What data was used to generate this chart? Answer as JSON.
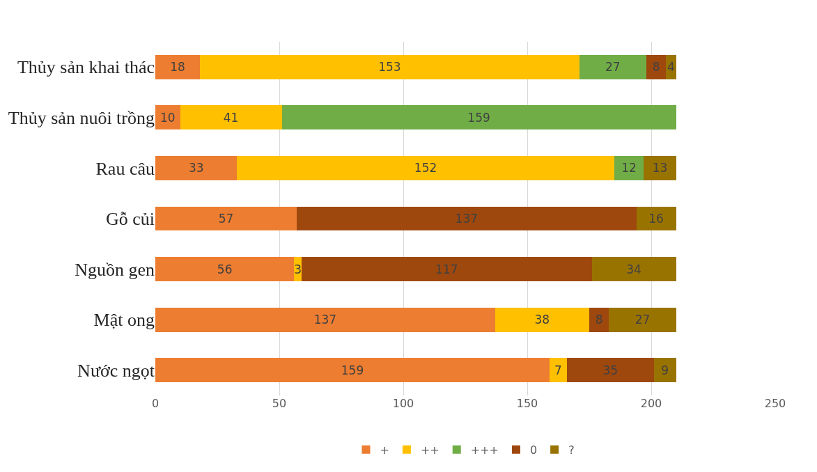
{
  "chart_data": {
    "type": "bar",
    "orientation": "horizontal",
    "stacked": true,
    "categories": [
      "Thủy sản khai thác",
      "Thủy sản nuôi trồng",
      "Rau câu",
      "Gỗ củi",
      "Nguồn gen",
      "Mật ong",
      "Nước ngọt"
    ],
    "series": [
      {
        "name": "+",
        "color": "#ed7d31",
        "values": [
          18,
          10,
          33,
          57,
          56,
          137,
          159
        ]
      },
      {
        "name": "++",
        "color": "#ffc000",
        "values": [
          153,
          41,
          152,
          null,
          3,
          38,
          7
        ]
      },
      {
        "name": "+++",
        "color": "#70ad47",
        "values": [
          27,
          159,
          12,
          null,
          null,
          null,
          null
        ]
      },
      {
        "name": "0",
        "color": "#9e480e",
        "values": [
          8,
          null,
          null,
          137,
          117,
          8,
          35
        ]
      },
      {
        "name": "?",
        "color": "#997300",
        "values": [
          4,
          null,
          13,
          16,
          34,
          27,
          9
        ]
      }
    ],
    "xlim": [
      0,
      250
    ],
    "xticks": [
      0,
      50,
      100,
      150,
      200,
      250
    ],
    "grid": "x",
    "legend": "bottom",
    "data_labels": true
  }
}
